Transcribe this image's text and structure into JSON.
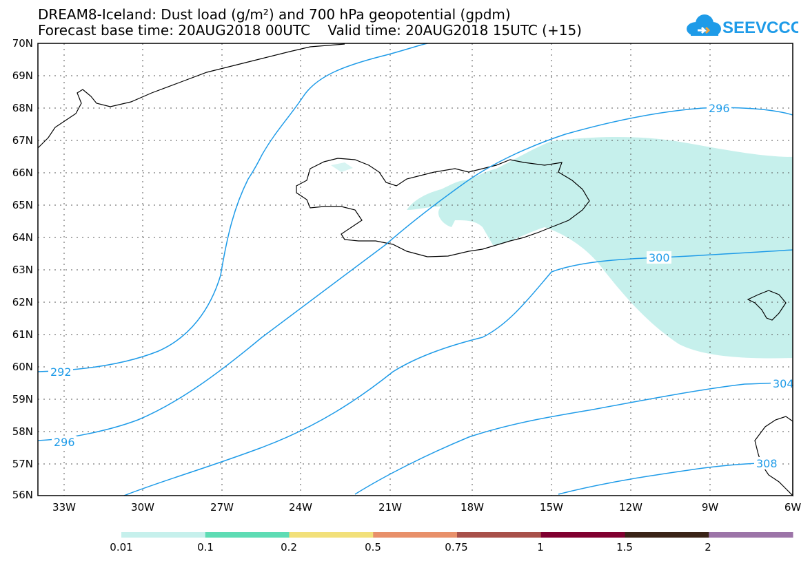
{
  "title": {
    "line1": "DREAM8-Iceland: Dust load (g/m²) and 700 hPa geopotential (gpdm)",
    "line2": "Forecast base time: 20AUG2018 00UTC    Valid time: 20AUG2018 15UTC (+15)"
  },
  "logo": {
    "text": "SEEVCCC",
    "color": "#1e9be8"
  },
  "map": {
    "lat_labels": [
      "70N",
      "69N",
      "68N",
      "67N",
      "66N",
      "65N",
      "64N",
      "63N",
      "62N",
      "61N",
      "60N",
      "59N",
      "58N",
      "57N",
      "56N"
    ],
    "lon_labels": [
      "33W",
      "30W",
      "27W",
      "24W",
      "21W",
      "18W",
      "15W",
      "12W",
      "9W",
      "6W"
    ],
    "contour_color": "#1e9be8",
    "coast_color": "#000000",
    "dust_color": "#c6f0ec",
    "contour_labels": [
      "296",
      "300",
      "292",
      "296",
      "304",
      "308"
    ]
  },
  "colorbar": {
    "colors": [
      "#c6f0ec",
      "#5edcb4",
      "#f2e07a",
      "#e8906a",
      "#a8504a",
      "#800030",
      "#3a2418",
      "#9c74a8"
    ],
    "labels": [
      "0.01",
      "0.1",
      "0.2",
      "0.5",
      "0.75",
      "1",
      "1.5",
      "2"
    ]
  }
}
